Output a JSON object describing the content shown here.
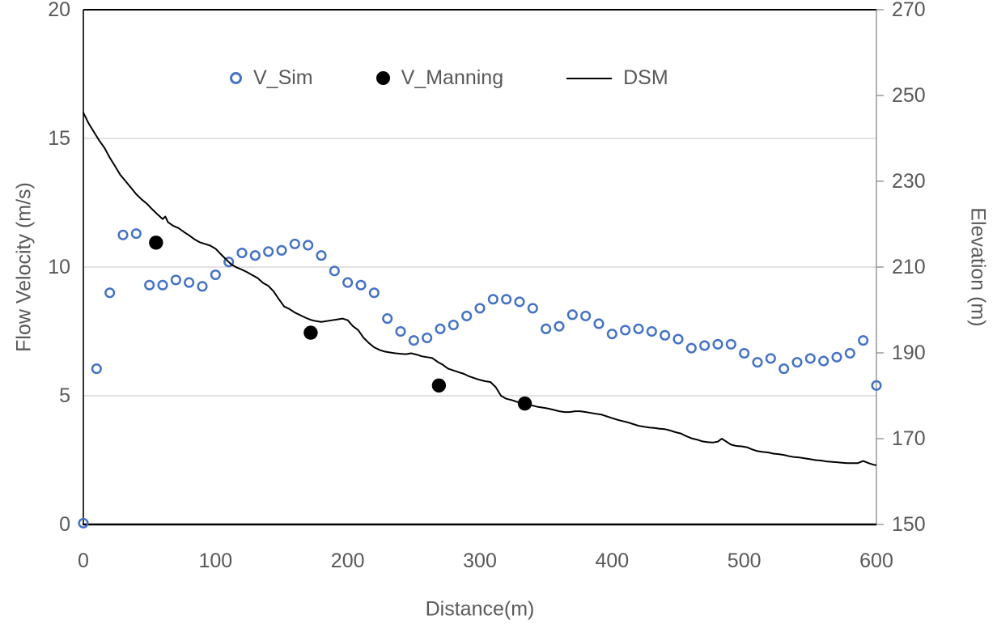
{
  "figure": {
    "legend": [
      {
        "label": "V_Sim",
        "marker": "open-circle",
        "color": "#4472C4"
      },
      {
        "label": "V_Manning",
        "marker": "filled-circle",
        "color": "#000000"
      },
      {
        "label": "DSM",
        "marker": "line",
        "color": "#000000"
      }
    ]
  },
  "colors": {
    "accent_blue": "#4472C4",
    "series_black": "#000000",
    "axis_text": "#595959",
    "gridline": "#D9D9D9",
    "axis_line": "#000000",
    "right_axis_line": "#808080",
    "background": "#FFFFFF"
  },
  "chart_data": {
    "type": "scatter",
    "title": "",
    "xlabel": "Distance(m)",
    "ylabel_left": "Flow Velocity (m/s)",
    "ylabel_right": "Elevation (m)",
    "x_axis": {
      "min": 0,
      "max": 600,
      "ticks": [
        0,
        100,
        200,
        300,
        400,
        500,
        600
      ]
    },
    "y_left": {
      "min": 0,
      "max": 20,
      "ticks": [
        0,
        5,
        10,
        15,
        20
      ]
    },
    "y_right": {
      "min": 150,
      "max": 270,
      "ticks": [
        150,
        170,
        190,
        210,
        230,
        250,
        270
      ]
    },
    "grid": {
      "horizontal_at_left_ticks": [
        5,
        10,
        15
      ],
      "vertical": false
    },
    "legend_position": "top-center-inside",
    "series": [
      {
        "name": "V_Sim",
        "type": "scatter",
        "axis": "left",
        "marker": "open-circle",
        "color": "#4472C4",
        "points": [
          [
            0,
            0.05
          ],
          [
            10,
            6.05
          ],
          [
            20,
            9.0
          ],
          [
            30,
            11.25
          ],
          [
            40,
            11.3
          ],
          [
            50,
            9.3
          ],
          [
            60,
            9.3
          ],
          [
            70,
            9.5
          ],
          [
            80,
            9.4
          ],
          [
            90,
            9.25
          ],
          [
            100,
            9.7
          ],
          [
            110,
            10.2
          ],
          [
            120,
            10.55
          ],
          [
            130,
            10.45
          ],
          [
            140,
            10.6
          ],
          [
            150,
            10.65
          ],
          [
            160,
            10.9
          ],
          [
            170,
            10.85
          ],
          [
            180,
            10.45
          ],
          [
            190,
            9.85
          ],
          [
            200,
            9.4
          ],
          [
            210,
            9.3
          ],
          [
            220,
            9.0
          ],
          [
            230,
            8.0
          ],
          [
            240,
            7.5
          ],
          [
            250,
            7.15
          ],
          [
            260,
            7.25
          ],
          [
            270,
            7.6
          ],
          [
            280,
            7.75
          ],
          [
            290,
            8.1
          ],
          [
            300,
            8.4
          ],
          [
            310,
            8.75
          ],
          [
            320,
            8.75
          ],
          [
            330,
            8.65
          ],
          [
            340,
            8.4
          ],
          [
            350,
            7.6
          ],
          [
            360,
            7.7
          ],
          [
            370,
            8.15
          ],
          [
            380,
            8.1
          ],
          [
            390,
            7.8
          ],
          [
            400,
            7.4
          ],
          [
            410,
            7.55
          ],
          [
            420,
            7.6
          ],
          [
            430,
            7.5
          ],
          [
            440,
            7.35
          ],
          [
            450,
            7.2
          ],
          [
            460,
            6.85
          ],
          [
            470,
            6.95
          ],
          [
            480,
            7.0
          ],
          [
            490,
            7.0
          ],
          [
            500,
            6.65
          ],
          [
            510,
            6.3
          ],
          [
            520,
            6.45
          ],
          [
            530,
            6.05
          ],
          [
            540,
            6.3
          ],
          [
            550,
            6.45
          ],
          [
            560,
            6.35
          ],
          [
            570,
            6.5
          ],
          [
            580,
            6.65
          ],
          [
            590,
            7.15
          ],
          [
            600,
            5.4
          ]
        ]
      },
      {
        "name": "V_Manning",
        "type": "scatter",
        "axis": "left",
        "marker": "filled-circle",
        "color": "#000000",
        "points": [
          [
            55,
            10.95
          ],
          [
            172,
            7.45
          ],
          [
            269,
            5.4
          ],
          [
            334,
            4.7
          ]
        ]
      },
      {
        "name": "DSM",
        "type": "line",
        "axis": "right",
        "marker": "none",
        "color": "#000000",
        "points": [
          [
            0,
            246
          ],
          [
            4,
            243.5
          ],
          [
            8,
            241.5
          ],
          [
            12,
            239.5
          ],
          [
            16,
            237.8
          ],
          [
            20,
            235.5
          ],
          [
            24,
            233.5
          ],
          [
            28,
            231.5
          ],
          [
            32,
            230
          ],
          [
            36,
            228.5
          ],
          [
            40,
            227
          ],
          [
            44,
            225.8
          ],
          [
            48,
            224.8
          ],
          [
            52,
            223.5
          ],
          [
            56,
            222.3
          ],
          [
            60,
            221.2
          ],
          [
            62,
            221.8
          ],
          [
            64,
            220.5
          ],
          [
            68,
            219.6
          ],
          [
            72,
            219.1
          ],
          [
            76,
            218.2
          ],
          [
            80,
            217.4
          ],
          [
            84,
            216.5
          ],
          [
            88,
            215.8
          ],
          [
            92,
            215.4
          ],
          [
            96,
            215
          ],
          [
            100,
            214.3
          ],
          [
            104,
            213
          ],
          [
            108,
            211.8
          ],
          [
            112,
            210.6
          ],
          [
            116,
            209.9
          ],
          [
            120,
            209.4
          ],
          [
            124,
            208.8
          ],
          [
            128,
            208.1
          ],
          [
            132,
            207.4
          ],
          [
            136,
            206.3
          ],
          [
            140,
            205.6
          ],
          [
            144,
            204.3
          ],
          [
            148,
            202.5
          ],
          [
            152,
            200.8
          ],
          [
            156,
            200.2
          ],
          [
            160,
            199.4
          ],
          [
            164,
            198.8
          ],
          [
            168,
            198.2
          ],
          [
            172,
            197.7
          ],
          [
            176,
            197.4
          ],
          [
            180,
            197.2
          ],
          [
            184,
            197.4
          ],
          [
            188,
            197.6
          ],
          [
            192,
            197.8
          ],
          [
            196,
            198
          ],
          [
            200,
            197.6
          ],
          [
            204,
            196.2
          ],
          [
            208,
            195.3
          ],
          [
            212,
            193.5
          ],
          [
            216,
            192.3
          ],
          [
            220,
            191.3
          ],
          [
            224,
            190.7
          ],
          [
            228,
            190.3
          ],
          [
            232,
            190.1
          ],
          [
            236,
            189.9
          ],
          [
            240,
            189.8
          ],
          [
            244,
            189.7
          ],
          [
            248,
            189.9
          ],
          [
            252,
            189.6
          ],
          [
            256,
            189.2
          ],
          [
            260,
            189
          ],
          [
            264,
            188.8
          ],
          [
            268,
            187.9
          ],
          [
            272,
            187.2
          ],
          [
            276,
            186.3
          ],
          [
            280,
            185.9
          ],
          [
            284,
            185.5
          ],
          [
            288,
            185.1
          ],
          [
            292,
            184.5
          ],
          [
            296,
            184.1
          ],
          [
            300,
            183.7
          ],
          [
            304,
            183.4
          ],
          [
            308,
            183.2
          ],
          [
            312,
            182
          ],
          [
            316,
            180
          ],
          [
            320,
            179.3
          ],
          [
            324,
            179
          ],
          [
            328,
            178.6
          ],
          [
            332,
            178.2
          ],
          [
            336,
            177.9
          ],
          [
            340,
            177.7
          ],
          [
            344,
            177.4
          ],
          [
            348,
            177.2
          ],
          [
            352,
            177
          ],
          [
            356,
            176.7
          ],
          [
            360,
            176.4
          ],
          [
            364,
            176.2
          ],
          [
            368,
            176.2
          ],
          [
            372,
            176.4
          ],
          [
            376,
            176.4
          ],
          [
            380,
            176.2
          ],
          [
            384,
            176
          ],
          [
            388,
            175.8
          ],
          [
            392,
            175.6
          ],
          [
            396,
            175.2
          ],
          [
            400,
            174.8
          ],
          [
            404,
            174.4
          ],
          [
            408,
            174.1
          ],
          [
            412,
            173.8
          ],
          [
            416,
            173.4
          ],
          [
            420,
            173
          ],
          [
            424,
            172.8
          ],
          [
            428,
            172.6
          ],
          [
            432,
            172.5
          ],
          [
            436,
            172.3
          ],
          [
            440,
            172.2
          ],
          [
            444,
            171.9
          ],
          [
            448,
            171.5
          ],
          [
            452,
            171.2
          ],
          [
            456,
            170.6
          ],
          [
            460,
            170.1
          ],
          [
            464,
            169.8
          ],
          [
            468,
            169.4
          ],
          [
            472,
            169.2
          ],
          [
            476,
            169.1
          ],
          [
            480,
            169.3
          ],
          [
            483,
            170
          ],
          [
            486,
            169.4
          ],
          [
            490,
            168.6
          ],
          [
            494,
            168.3
          ],
          [
            498,
            168.2
          ],
          [
            502,
            168
          ],
          [
            506,
            167.5
          ],
          [
            510,
            167.1
          ],
          [
            514,
            166.9
          ],
          [
            518,
            166.8
          ],
          [
            522,
            166.5
          ],
          [
            526,
            166.4
          ],
          [
            530,
            166.2
          ],
          [
            534,
            165.9
          ],
          [
            538,
            165.7
          ],
          [
            542,
            165.6
          ],
          [
            546,
            165.4
          ],
          [
            550,
            165.2
          ],
          [
            554,
            165
          ],
          [
            558,
            164.9
          ],
          [
            562,
            164.7
          ],
          [
            566,
            164.6
          ],
          [
            570,
            164.5
          ],
          [
            574,
            164.4
          ],
          [
            578,
            164.3
          ],
          [
            582,
            164.3
          ],
          [
            586,
            164.3
          ],
          [
            590,
            164.8
          ],
          [
            594,
            164.3
          ],
          [
            598,
            163.9
          ],
          [
            600,
            163.8
          ]
        ]
      }
    ]
  }
}
